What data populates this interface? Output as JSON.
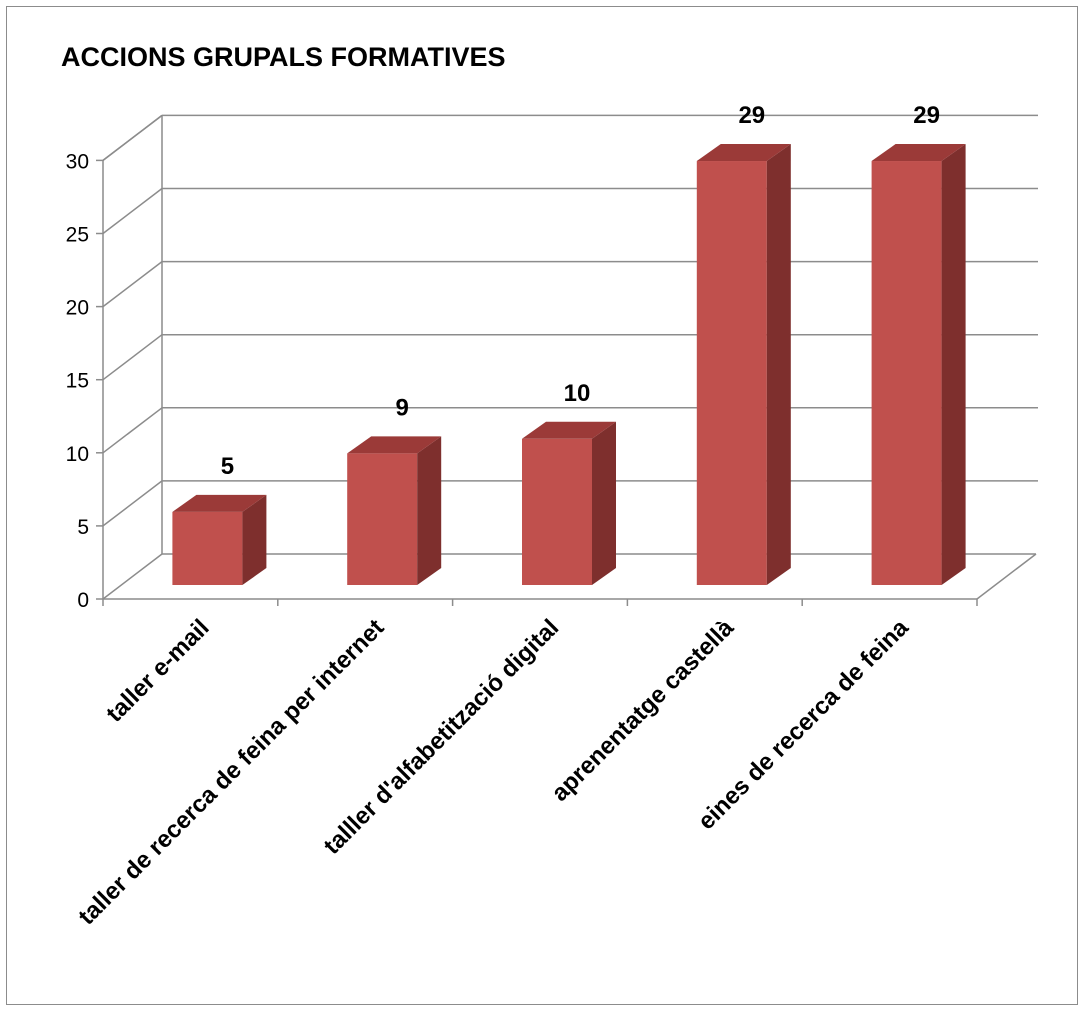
{
  "chart_data": {
    "type": "bar",
    "title": "ACCIONS GRUPALS FORMATIVES",
    "xlabel": "",
    "ylabel": "",
    "categories": [
      "taller e-mail",
      "taller de recerca de feina per internet",
      "talller d'alfabetització digital",
      "aprenentatge castellà",
      "eines de recerca de feina"
    ],
    "values": [
      5,
      9,
      10,
      29,
      29
    ],
    "data_labels": [
      "5",
      "9",
      "10",
      "29",
      "29"
    ],
    "ylim": [
      0,
      30
    ],
    "yticks": [
      "0",
      "5",
      "10",
      "15",
      "20",
      "25",
      "30"
    ],
    "grid": true,
    "legend": "none",
    "three_d": true,
    "colors": {
      "bar_front": "#C0504D",
      "bar_side": "#7E2F2D",
      "bar_top": "#9B3A38",
      "grid": "#8C8C8C"
    }
  }
}
